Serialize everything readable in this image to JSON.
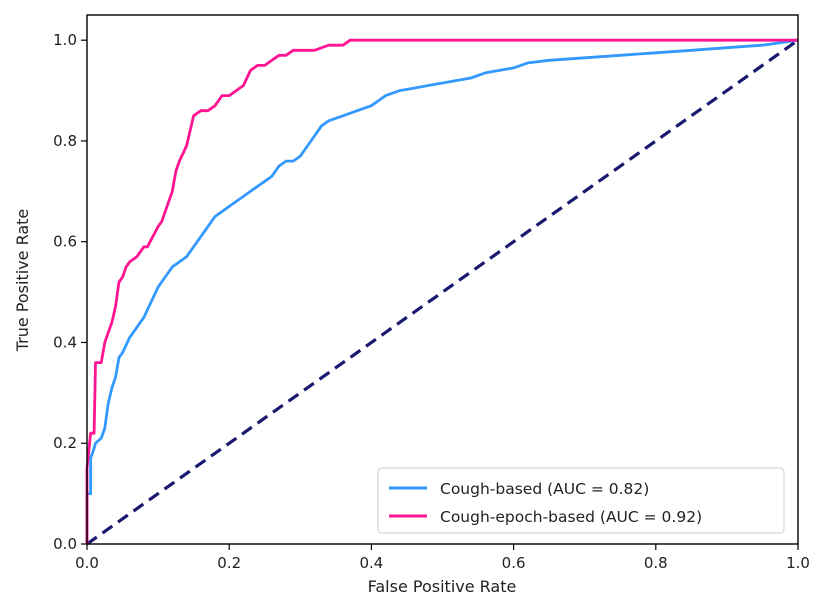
{
  "chart_data": {
    "type": "line",
    "title": "",
    "xlabel": "False Positive Rate",
    "ylabel": "True Positive Rate",
    "xlim": [
      0.0,
      1.0
    ],
    "ylim": [
      0.0,
      1.05
    ],
    "xticks": [
      "0.0",
      "0.2",
      "0.4",
      "0.6",
      "0.8",
      "1.0"
    ],
    "yticks": [
      "0.0",
      "0.2",
      "0.4",
      "0.6",
      "0.8",
      "1.0"
    ],
    "grid": false,
    "legend_position": "lower-right",
    "series": [
      {
        "name": "Cough-based (AUC = 0.82)",
        "color": "#3399ff",
        "style": "solid",
        "x": [
          0.0,
          0.0,
          0.005,
          0.005,
          0.01,
          0.012,
          0.02,
          0.025,
          0.03,
          0.035,
          0.04,
          0.045,
          0.05,
          0.06,
          0.07,
          0.08,
          0.09,
          0.1,
          0.11,
          0.12,
          0.13,
          0.14,
          0.15,
          0.16,
          0.17,
          0.18,
          0.19,
          0.2,
          0.21,
          0.22,
          0.23,
          0.24,
          0.25,
          0.26,
          0.27,
          0.28,
          0.29,
          0.3,
          0.31,
          0.32,
          0.33,
          0.34,
          0.36,
          0.38,
          0.4,
          0.42,
          0.44,
          0.46,
          0.48,
          0.5,
          0.52,
          0.54,
          0.56,
          0.58,
          0.6,
          0.62,
          0.65,
          0.7,
          0.75,
          0.8,
          0.85,
          0.9,
          0.95,
          1.0
        ],
        "y": [
          0.0,
          0.1,
          0.1,
          0.17,
          0.19,
          0.2,
          0.21,
          0.23,
          0.28,
          0.31,
          0.33,
          0.37,
          0.38,
          0.41,
          0.43,
          0.45,
          0.48,
          0.51,
          0.53,
          0.55,
          0.56,
          0.57,
          0.59,
          0.61,
          0.63,
          0.65,
          0.66,
          0.67,
          0.68,
          0.69,
          0.7,
          0.71,
          0.72,
          0.73,
          0.75,
          0.76,
          0.76,
          0.77,
          0.79,
          0.81,
          0.83,
          0.84,
          0.85,
          0.86,
          0.87,
          0.89,
          0.9,
          0.905,
          0.91,
          0.915,
          0.92,
          0.925,
          0.935,
          0.94,
          0.945,
          0.955,
          0.96,
          0.965,
          0.97,
          0.975,
          0.98,
          0.985,
          0.99,
          1.0
        ]
      },
      {
        "name": "Cough-epoch-based (AUC = 0.92)",
        "color": "#ff1493",
        "style": "solid",
        "x": [
          0.0,
          0.0,
          0.005,
          0.01,
          0.012,
          0.02,
          0.025,
          0.03,
          0.035,
          0.04,
          0.045,
          0.05,
          0.055,
          0.06,
          0.07,
          0.08,
          0.085,
          0.1,
          0.105,
          0.12,
          0.125,
          0.13,
          0.14,
          0.15,
          0.16,
          0.17,
          0.18,
          0.19,
          0.2,
          0.21,
          0.22,
          0.23,
          0.24,
          0.25,
          0.26,
          0.27,
          0.28,
          0.29,
          0.3,
          0.32,
          0.34,
          0.36,
          0.37,
          0.4,
          0.6,
          0.8,
          1.0
        ],
        "y": [
          0.0,
          0.15,
          0.22,
          0.22,
          0.36,
          0.36,
          0.4,
          0.42,
          0.44,
          0.47,
          0.52,
          0.53,
          0.55,
          0.56,
          0.57,
          0.59,
          0.59,
          0.63,
          0.64,
          0.7,
          0.74,
          0.76,
          0.79,
          0.85,
          0.86,
          0.86,
          0.87,
          0.89,
          0.89,
          0.9,
          0.91,
          0.94,
          0.95,
          0.95,
          0.96,
          0.97,
          0.97,
          0.98,
          0.98,
          0.98,
          0.99,
          0.99,
          1.0,
          1.0,
          1.0,
          1.0,
          1.0
        ]
      },
      {
        "name": "",
        "color": "#191970",
        "style": "dashed",
        "x": [
          0.0,
          1.0
        ],
        "y": [
          0.0,
          1.0
        ]
      }
    ]
  }
}
